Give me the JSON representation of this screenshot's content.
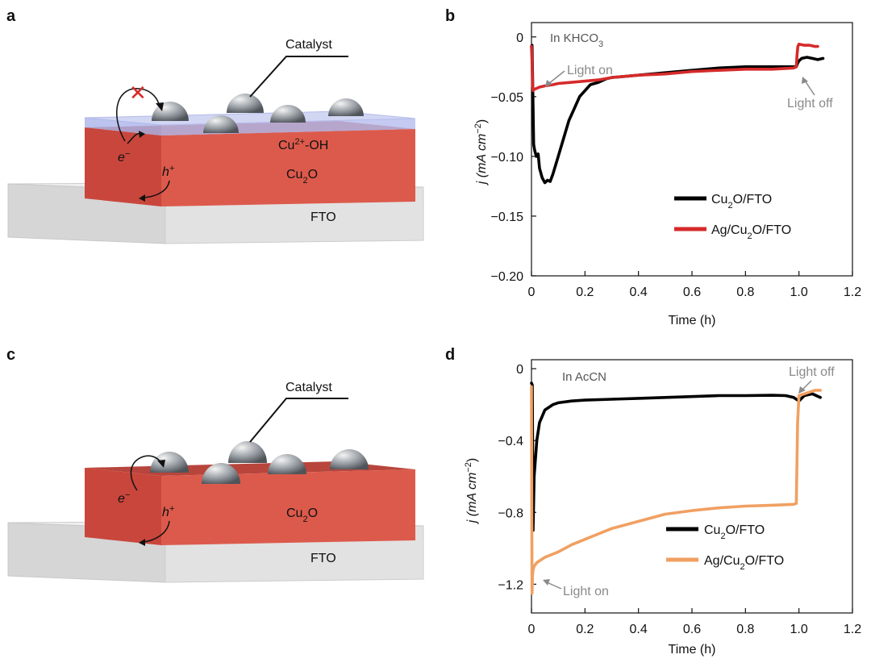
{
  "panels": {
    "a": {
      "letter": "a",
      "catalyst": "Catalyst",
      "surface_base": "Cu",
      "surface_sup": "2+",
      "surface_rest": "-OH",
      "layer_base": "Cu",
      "layer_sub": "2",
      "layer_rest": "O",
      "substrate": "FTO",
      "electron": "e",
      "electron_sup": "−",
      "hole": "h",
      "hole_sup": "+",
      "blocked_mark": "✕"
    },
    "c": {
      "letter": "c",
      "catalyst": "Catalyst",
      "layer_base": "Cu",
      "layer_sub": "2",
      "layer_rest": "O",
      "substrate": "FTO",
      "electron": "e",
      "electron_sup": "−",
      "hole": "h",
      "hole_sup": "+"
    }
  },
  "colors": {
    "cu2o_series": "#000000",
    "ag_kh": "#d62a2a",
    "ag_acn": "#f0a062",
    "cu2o_layer": "#d9574a",
    "cu2o_layer_dark": "#c03a30",
    "cu2o_layer_top": "#b8453c",
    "fto": "#dedede",
    "coating": "#c6cdf0"
  },
  "chart_data": [
    {
      "panel": "b",
      "letter": "b",
      "type": "line",
      "condition_base": "In KHCO",
      "condition_sub": "3",
      "xlabel": "Time (h)",
      "ylabel_base": "j (mA cm",
      "ylabel_sup": "−2",
      "ylabel_end": ")",
      "xlim": [
        0,
        1.2
      ],
      "ylim": [
        -0.2,
        0.012
      ],
      "xticks": [
        "0",
        "0.2",
        "0.4",
        "0.6",
        "0.8",
        "1.0",
        "1.2"
      ],
      "xtick_values": [
        0,
        0.2,
        0.4,
        0.6,
        0.8,
        1.0,
        1.2
      ],
      "yticks": [
        "0",
        "−0.05",
        "−0.10",
        "−0.15",
        "−0.20"
      ],
      "ytick_values": [
        0,
        -0.05,
        -0.1,
        -0.15,
        -0.2
      ],
      "annotations": [
        {
          "text": "Light on",
          "x": 0.003,
          "y": -0.032
        },
        {
          "text": "Light off",
          "x": 1.003,
          "y": -0.038
        }
      ],
      "legend_position": "lower-right",
      "series": [
        {
          "name_base": "Cu",
          "name_sub": "2",
          "name_rest": "O/FTO",
          "color": "#000000",
          "x": [
            0.0,
            0.002,
            0.004,
            0.006,
            0.008,
            0.012,
            0.018,
            0.025,
            0.03,
            0.04,
            0.05,
            0.06,
            0.07,
            0.08,
            0.1,
            0.12,
            0.14,
            0.16,
            0.18,
            0.2,
            0.22,
            0.25,
            0.28,
            0.3,
            0.35,
            0.4,
            0.5,
            0.6,
            0.7,
            0.8,
            0.9,
            0.99,
            0.995,
            1.0,
            1.01,
            1.03,
            1.05,
            1.07,
            1.09
          ],
          "y": [
            -0.008,
            -0.007,
            -0.03,
            -0.06,
            -0.09,
            -0.095,
            -0.1,
            -0.098,
            -0.11,
            -0.118,
            -0.122,
            -0.12,
            -0.121,
            -0.115,
            -0.1,
            -0.085,
            -0.07,
            -0.06,
            -0.05,
            -0.045,
            -0.04,
            -0.038,
            -0.035,
            -0.034,
            -0.033,
            -0.032,
            -0.03,
            -0.028,
            -0.026,
            -0.025,
            -0.025,
            -0.025,
            -0.022,
            -0.02,
            -0.018,
            -0.017,
            -0.018,
            -0.019,
            -0.018
          ]
        },
        {
          "name_base": "Ag/Cu",
          "name_sub": "2",
          "name_rest": "O/FTO",
          "color": "#d62a2a",
          "x": [
            0.0,
            0.002,
            0.004,
            0.006,
            0.01,
            0.03,
            0.05,
            0.08,
            0.1,
            0.15,
            0.2,
            0.25,
            0.3,
            0.35,
            0.4,
            0.5,
            0.6,
            0.7,
            0.8,
            0.9,
            0.98,
            0.99,
            0.993,
            0.996,
            1.0,
            1.02,
            1.04,
            1.06,
            1.07
          ],
          "y": [
            -0.008,
            -0.02,
            -0.04,
            -0.045,
            -0.044,
            -0.042,
            -0.041,
            -0.04,
            -0.039,
            -0.038,
            -0.037,
            -0.036,
            -0.034,
            -0.033,
            -0.032,
            -0.031,
            -0.029,
            -0.028,
            -0.027,
            -0.027,
            -0.026,
            -0.025,
            -0.015,
            -0.008,
            -0.006,
            -0.007,
            -0.007,
            -0.008,
            -0.008
          ]
        }
      ]
    },
    {
      "panel": "d",
      "letter": "d",
      "type": "line",
      "condition": "In AcCN",
      "xlabel": "Time (h)",
      "ylabel_base": "j (mA cm",
      "ylabel_sup": "−2",
      "ylabel_end": ")",
      "xlim": [
        0,
        1.2
      ],
      "ylim": [
        -1.36,
        0.05
      ],
      "xticks": [
        "0",
        "0.2",
        "0.4",
        "0.6",
        "0.8",
        "1.0",
        "1.2"
      ],
      "xtick_values": [
        0,
        0.2,
        0.4,
        0.6,
        0.8,
        1.0,
        1.2
      ],
      "yticks": [
        "0",
        "−0.4",
        "−0.8",
        "−1.2"
      ],
      "ytick_values": [
        0,
        -0.4,
        -0.8,
        -1.2
      ],
      "annotations": [
        {
          "text": "Light on",
          "x": 0.005,
          "y": -1.25
        },
        {
          "text": "Light off",
          "x": 1.0,
          "y": -0.09
        }
      ],
      "legend_position": "lower-right",
      "series": [
        {
          "name_base": "Cu",
          "name_sub": "2",
          "name_rest": "O/FTO",
          "color": "#000000",
          "x": [
            0.0,
            0.003,
            0.006,
            0.01,
            0.02,
            0.03,
            0.05,
            0.08,
            0.1,
            0.15,
            0.2,
            0.3,
            0.4,
            0.5,
            0.6,
            0.7,
            0.8,
            0.9,
            0.95,
            0.98,
            1.0,
            1.02,
            1.05,
            1.08
          ],
          "y": [
            -0.08,
            -0.09,
            -0.9,
            -0.6,
            -0.4,
            -0.3,
            -0.23,
            -0.2,
            -0.19,
            -0.18,
            -0.175,
            -0.17,
            -0.165,
            -0.16,
            -0.155,
            -0.15,
            -0.15,
            -0.148,
            -0.15,
            -0.16,
            -0.18,
            -0.15,
            -0.14,
            -0.16
          ]
        },
        {
          "name_base": "Ag/Cu",
          "name_sub": "2",
          "name_rest": "O/FTO",
          "color": "#f0a062",
          "x": [
            0.0,
            0.002,
            0.004,
            0.006,
            0.01,
            0.02,
            0.05,
            0.1,
            0.15,
            0.2,
            0.25,
            0.3,
            0.35,
            0.4,
            0.5,
            0.6,
            0.7,
            0.8,
            0.9,
            0.98,
            0.99,
            0.995,
            1.0,
            1.02,
            1.04,
            1.06,
            1.08
          ],
          "y": [
            -0.1,
            -1.25,
            -1.15,
            -1.12,
            -1.1,
            -1.08,
            -1.05,
            -1.02,
            -0.98,
            -0.95,
            -0.92,
            -0.89,
            -0.87,
            -0.85,
            -0.81,
            -0.79,
            -0.775,
            -0.765,
            -0.76,
            -0.755,
            -0.75,
            -0.3,
            -0.15,
            -0.14,
            -0.13,
            -0.12,
            -0.12
          ]
        }
      ]
    }
  ]
}
